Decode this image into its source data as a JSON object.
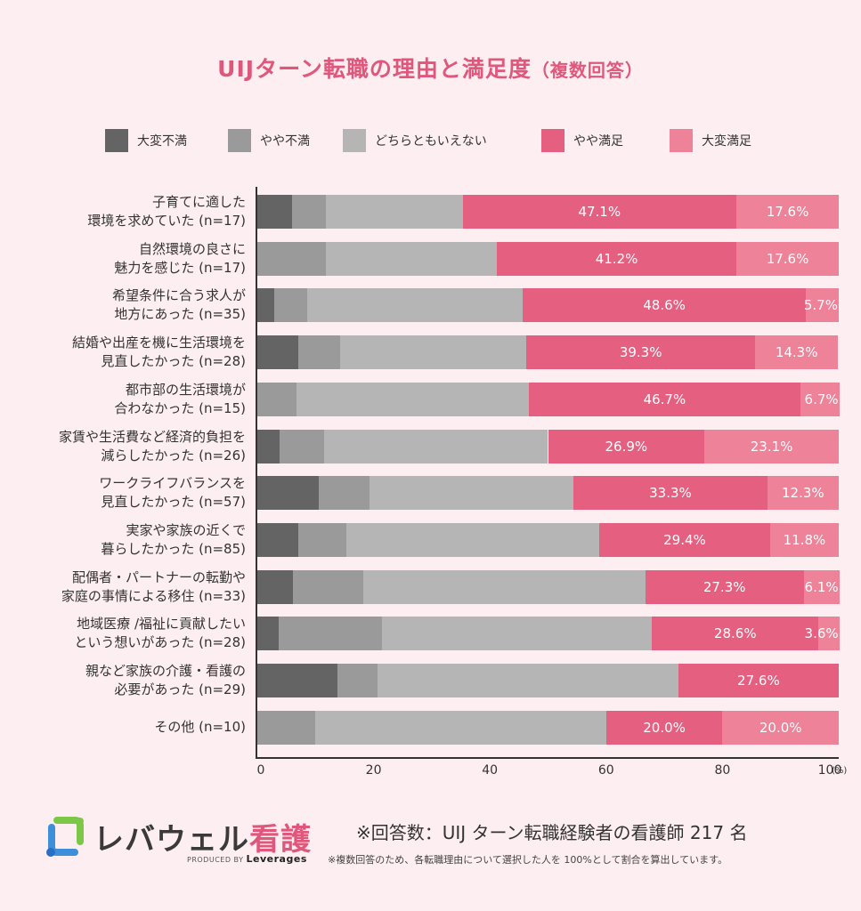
{
  "title": {
    "main": "UIJターン転職の理由と満足度",
    "sub": "（複数回答）"
  },
  "colors": {
    "very_dissatisfied": "#646464",
    "somewhat_dissatisfied": "#9a9a9a",
    "neutral": "#b5b5b5",
    "somewhat_satisfied": "#e55f80",
    "very_satisfied": "#ed8299",
    "title": "#e0577c",
    "background": "#fdeef1"
  },
  "chart_data": {
    "type": "bar",
    "orientation": "horizontal-stacked-100",
    "title": "UIJターン転職の理由と満足度（複数回答）",
    "xlabel": "",
    "x_unit": "(%)",
    "xlim": [
      0,
      100
    ],
    "x_ticks": [
      "0",
      "20",
      "40",
      "60",
      "80",
      "100"
    ],
    "legend_position": "top",
    "categories": [
      [
        "子育てに適した",
        "環境を求めていた (n=17)"
      ],
      [
        "自然環境の良さに",
        "魅力を感じた (n=17)"
      ],
      [
        "希望条件に合う求人が",
        "地方にあった (n=35)"
      ],
      [
        "結婚や出産を機に生活環境を",
        "見直したかった (n=28)"
      ],
      [
        "都市部の生活環境が",
        "合わなかった (n=15)"
      ],
      [
        "家賃や生活費など経済的負担を",
        "減らしたかった (n=26)"
      ],
      [
        "ワークライフバランスを",
        "見直したかった (n=57)"
      ],
      [
        "実家や家族の近くで",
        "暮らしたかった (n=85)"
      ],
      [
        "配偶者・パートナーの転勤や",
        "家庭の事情による移住 (n=33)"
      ],
      [
        "地域医療 /福祉に貢献したい",
        "という想いがあった (n=28)"
      ],
      [
        "親など家族の介護・看護の",
        "必要があった (n=29)"
      ],
      [
        "その他 (n=10)"
      ]
    ],
    "series": [
      {
        "name": "大変不満",
        "key": "very_dissatisfied",
        "labeled": false,
        "values": [
          5.9,
          0,
          2.9,
          7.1,
          0,
          3.8,
          10.5,
          7.1,
          6.1,
          3.6,
          13.8,
          0
        ]
      },
      {
        "name": "やや不満",
        "key": "somewhat_dissatisfied",
        "labeled": false,
        "values": [
          5.9,
          11.8,
          5.7,
          7.1,
          6.7,
          7.7,
          8.8,
          8.2,
          12.1,
          17.9,
          6.9,
          10.0
        ]
      },
      {
        "name": "どちらともいえない",
        "key": "neutral",
        "labeled": false,
        "values": [
          23.5,
          29.4,
          37.1,
          32.1,
          40.0,
          38.5,
          35.1,
          43.5,
          48.5,
          46.4,
          51.7,
          50.0
        ]
      },
      {
        "name": "やや満足",
        "key": "somewhat_satisfied",
        "labeled": true,
        "values": [
          47.1,
          41.2,
          48.6,
          39.3,
          46.7,
          26.9,
          33.3,
          29.4,
          27.3,
          28.6,
          27.6,
          20.0
        ],
        "labels": [
          "47.1%",
          "41.2%",
          "48.6%",
          "39.3%",
          "46.7%",
          "26.9%",
          "33.3%",
          "29.4%",
          "27.3%",
          "28.6%",
          "27.6%",
          "20.0%"
        ]
      },
      {
        "name": "大変満足",
        "key": "very_satisfied",
        "labeled": true,
        "values": [
          17.6,
          17.6,
          5.7,
          14.3,
          6.7,
          23.1,
          12.3,
          11.8,
          6.1,
          3.6,
          0,
          20.0
        ],
        "labels": [
          "17.6%",
          "17.6%",
          "5.7%",
          "14.3%",
          "6.7%",
          "23.1%",
          "12.3%",
          "11.8%",
          "6.1%",
          "3.6%",
          "",
          "20.0%"
        ]
      }
    ]
  },
  "footer": {
    "logo_main": "レバウェル",
    "logo_accent": "看護",
    "logo_produced": "PRODUCED BY",
    "logo_brand": "Leverages",
    "note_main": "※回答数：UIJ ターン転職経験者の看護師 217 名",
    "note_sub": "※複数回答のため、各転職理由について選択した人を 100%として割合を算出しています。"
  }
}
